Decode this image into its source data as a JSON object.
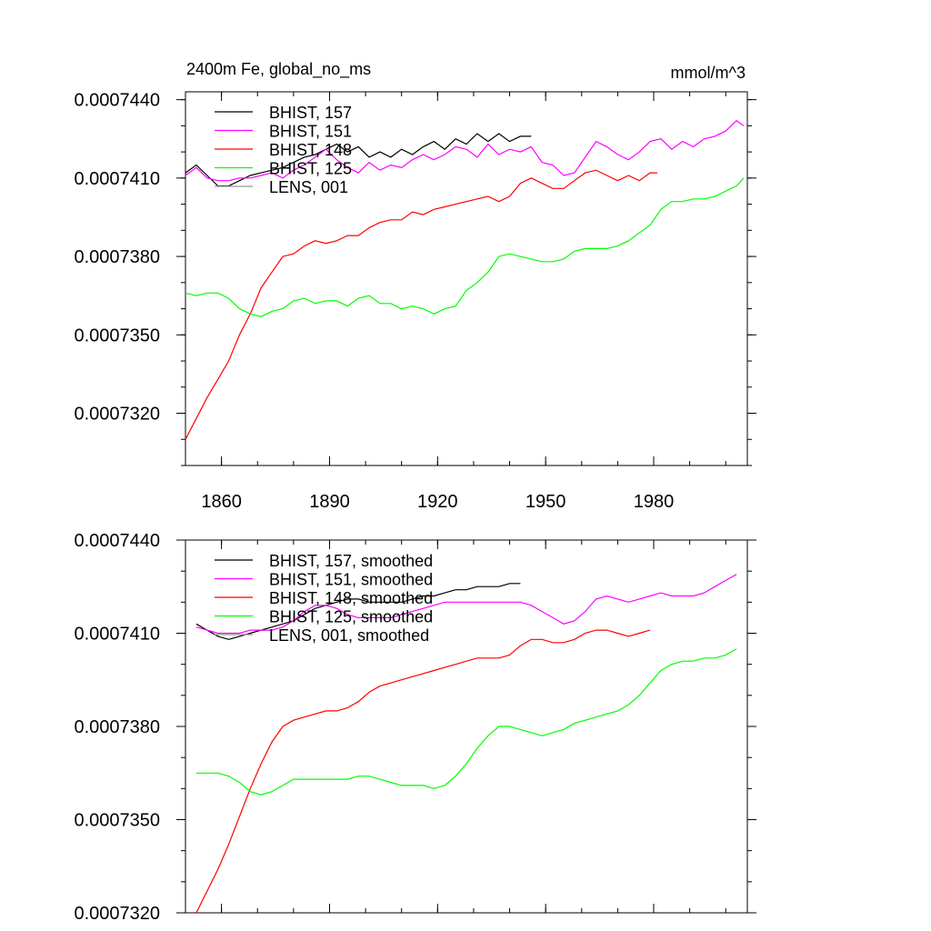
{
  "chart_data": [
    {
      "type": "line",
      "title": "2400m Fe, global_no_ms",
      "units": "mmol/m^3",
      "xlim": [
        1850,
        2006
      ],
      "ylim": [
        0.00073,
        0.0007443
      ],
      "x_ticks": [
        "1860",
        "1890",
        "1920",
        "1950",
        "1980"
      ],
      "y_ticks": [
        "0.0007320",
        "0.0007350",
        "0.0007380",
        "0.0007410",
        "0.0007440"
      ],
      "series": [
        {
          "name": "BHIST, 157",
          "color": "#000000",
          "x": [
            1850,
            1853,
            1856,
            1859,
            1862,
            1865,
            1868,
            1871,
            1874,
            1877,
            1880,
            1883,
            1886,
            1889,
            1892,
            1895,
            1898,
            1901,
            1904,
            1907,
            1910,
            1913,
            1916,
            1919,
            1922,
            1925,
            1928,
            1931,
            1934,
            1937,
            1940,
            1943,
            1946
          ],
          "y": [
            0.0007412,
            0.0007415,
            0.0007411,
            0.0007407,
            0.0007407,
            0.0007409,
            0.0007411,
            0.0007412,
            0.0007413,
            0.0007414,
            0.0007416,
            0.0007418,
            0.0007419,
            0.0007421,
            0.0007423,
            0.000742,
            0.0007422,
            0.0007418,
            0.000742,
            0.0007418,
            0.0007421,
            0.0007419,
            0.0007422,
            0.0007424,
            0.0007421,
            0.0007425,
            0.0007423,
            0.0007427,
            0.0007424,
            0.0007427,
            0.0007424,
            0.0007426,
            0.0007426
          ]
        },
        {
          "name": "BHIST, 151",
          "color": "#ff00ff",
          "x": [
            1850,
            1853,
            1856,
            1859,
            1862,
            1865,
            1868,
            1871,
            1874,
            1877,
            1880,
            1883,
            1886,
            1889,
            1892,
            1895,
            1898,
            1901,
            1904,
            1907,
            1910,
            1913,
            1916,
            1919,
            1922,
            1925,
            1928,
            1931,
            1934,
            1937,
            1940,
            1943,
            1946,
            1949,
            1952,
            1955,
            1958,
            1961,
            1964,
            1967,
            1970,
            1973,
            1976,
            1979,
            1982,
            1985,
            1988,
            1991,
            1994,
            1997,
            2000,
            2003,
            2005
          ],
          "y": [
            0.0007411,
            0.0007414,
            0.000741,
            0.0007409,
            0.0007409,
            0.000741,
            0.000741,
            0.0007411,
            0.0007412,
            0.000741,
            0.0007413,
            0.0007415,
            0.0007418,
            0.0007421,
            0.0007417,
            0.0007414,
            0.0007412,
            0.0007416,
            0.0007413,
            0.0007415,
            0.0007414,
            0.0007417,
            0.0007419,
            0.0007417,
            0.0007419,
            0.0007422,
            0.0007421,
            0.0007418,
            0.0007423,
            0.0007419,
            0.0007421,
            0.000742,
            0.0007422,
            0.0007416,
            0.0007415,
            0.0007411,
            0.0007412,
            0.0007418,
            0.0007424,
            0.0007422,
            0.0007419,
            0.0007417,
            0.000742,
            0.0007424,
            0.0007425,
            0.0007421,
            0.0007424,
            0.0007422,
            0.0007425,
            0.0007426,
            0.0007428,
            0.0007432,
            0.000743
          ]
        },
        {
          "name": "BHIST, 148",
          "color": "#ff0000",
          "x": [
            1850,
            1853,
            1856,
            1859,
            1862,
            1865,
            1868,
            1871,
            1874,
            1877,
            1880,
            1883,
            1886,
            1889,
            1892,
            1895,
            1898,
            1901,
            1904,
            1907,
            1910,
            1913,
            1916,
            1919,
            1922,
            1925,
            1928,
            1931,
            1934,
            1937,
            1940,
            1943,
            1946,
            1949,
            1952,
            1955,
            1958,
            1961,
            1964,
            1967,
            1970,
            1973,
            1976,
            1979,
            1981
          ],
          "y": [
            0.000731,
            0.0007318,
            0.0007326,
            0.0007333,
            0.000734,
            0.000735,
            0.0007358,
            0.0007368,
            0.0007374,
            0.000738,
            0.0007381,
            0.0007384,
            0.0007386,
            0.0007385,
            0.0007386,
            0.0007388,
            0.0007388,
            0.0007391,
            0.0007393,
            0.0007394,
            0.0007394,
            0.0007397,
            0.0007396,
            0.0007398,
            0.0007399,
            0.00074,
            0.0007401,
            0.0007402,
            0.0007403,
            0.0007401,
            0.0007403,
            0.0007408,
            0.000741,
            0.0007408,
            0.0007406,
            0.0007406,
            0.0007409,
            0.0007412,
            0.0007413,
            0.0007411,
            0.0007409,
            0.0007411,
            0.0007409,
            0.0007412,
            0.0007412
          ]
        },
        {
          "name": "BHIST, 125",
          "color": "#00ff00",
          "x": [
            1850,
            1853,
            1856,
            1859,
            1862,
            1865,
            1868,
            1871,
            1874,
            1877,
            1880,
            1883,
            1886,
            1889,
            1892,
            1895,
            1898,
            1901,
            1904,
            1907,
            1910,
            1913,
            1916,
            1919,
            1922,
            1925,
            1928,
            1931,
            1934,
            1937,
            1940,
            1943,
            1946,
            1949,
            1952,
            1955,
            1958,
            1961,
            1964,
            1967,
            1970,
            1973,
            1976,
            1979,
            1982,
            1985,
            1988,
            1991,
            1994,
            1997,
            2000,
            2003,
            2005
          ],
          "y": [
            0.0007366,
            0.0007365,
            0.0007366,
            0.0007366,
            0.0007364,
            0.000736,
            0.0007358,
            0.0007357,
            0.0007359,
            0.000736,
            0.0007363,
            0.0007364,
            0.0007362,
            0.0007363,
            0.0007363,
            0.0007361,
            0.0007364,
            0.0007365,
            0.0007362,
            0.0007362,
            0.000736,
            0.0007361,
            0.000736,
            0.0007358,
            0.000736,
            0.0007361,
            0.0007367,
            0.000737,
            0.0007374,
            0.000738,
            0.0007381,
            0.000738,
            0.0007379,
            0.0007378,
            0.0007378,
            0.0007379,
            0.0007382,
            0.0007383,
            0.0007383,
            0.0007383,
            0.0007384,
            0.0007386,
            0.0007389,
            0.0007392,
            0.0007398,
            0.0007401,
            0.0007401,
            0.0007402,
            0.0007402,
            0.0007403,
            0.0007405,
            0.0007407,
            0.000741
          ]
        },
        {
          "name": "LENS, 001",
          "color": "#999999",
          "x": [],
          "y": []
        }
      ]
    },
    {
      "type": "line",
      "xlim": [
        1850,
        2006
      ],
      "ylim": [
        0.000732,
        0.000744
      ],
      "x_ticks": [
        "1860",
        "1890",
        "1920",
        "1950",
        "1980"
      ],
      "y_ticks": [
        "0.0007320",
        "0.0007350",
        "0.0007380",
        "0.0007410",
        "0.0007440"
      ],
      "series": [
        {
          "name": "BHIST, 157, smoothed",
          "color": "#000000",
          "x": [
            1853,
            1856,
            1859,
            1862,
            1865,
            1868,
            1871,
            1874,
            1877,
            1880,
            1883,
            1886,
            1889,
            1892,
            1895,
            1898,
            1901,
            1904,
            1907,
            1910,
            1913,
            1916,
            1919,
            1922,
            1925,
            1928,
            1931,
            1934,
            1937,
            1940,
            1943
          ],
          "y": [
            0.0007413,
            0.0007411,
            0.0007409,
            0.0007408,
            0.0007409,
            0.000741,
            0.0007411,
            0.0007412,
            0.0007413,
            0.0007414,
            0.0007416,
            0.0007418,
            0.0007419,
            0.000742,
            0.0007421,
            0.0007421,
            0.000742,
            0.000742,
            0.000742,
            0.000742,
            0.0007421,
            0.0007422,
            0.0007422,
            0.0007423,
            0.0007424,
            0.0007424,
            0.0007425,
            0.0007425,
            0.0007425,
            0.0007426,
            0.0007426
          ]
        },
        {
          "name": "BHIST, 151, smoothed",
          "color": "#ff00ff",
          "x": [
            1853,
            1856,
            1859,
            1862,
            1865,
            1868,
            1871,
            1874,
            1877,
            1880,
            1883,
            1886,
            1889,
            1892,
            1895,
            1898,
            1901,
            1904,
            1907,
            1910,
            1913,
            1916,
            1919,
            1922,
            1925,
            1928,
            1931,
            1934,
            1937,
            1940,
            1943,
            1946,
            1949,
            1952,
            1955,
            1958,
            1961,
            1964,
            1967,
            1970,
            1973,
            1976,
            1979,
            1982,
            1985,
            1988,
            1991,
            1994,
            1997,
            2000,
            2003
          ],
          "y": [
            0.0007412,
            0.0007411,
            0.000741,
            0.000741,
            0.000741,
            0.0007411,
            0.0007411,
            0.0007411,
            0.0007412,
            0.0007414,
            0.0007417,
            0.0007419,
            0.0007419,
            0.0007418,
            0.0007416,
            0.0007415,
            0.0007415,
            0.0007415,
            0.0007415,
            0.0007416,
            0.0007417,
            0.0007418,
            0.0007419,
            0.000742,
            0.000742,
            0.000742,
            0.000742,
            0.000742,
            0.000742,
            0.000742,
            0.000742,
            0.0007419,
            0.0007417,
            0.0007415,
            0.0007413,
            0.0007414,
            0.0007417,
            0.0007421,
            0.0007422,
            0.0007421,
            0.000742,
            0.0007421,
            0.0007422,
            0.0007423,
            0.0007422,
            0.0007422,
            0.0007422,
            0.0007423,
            0.0007425,
            0.0007427,
            0.0007429
          ]
        },
        {
          "name": "BHIST, 148, smoothed",
          "color": "#ff0000",
          "x": [
            1853,
            1856,
            1859,
            1862,
            1865,
            1868,
            1871,
            1874,
            1877,
            1880,
            1883,
            1886,
            1889,
            1892,
            1895,
            1898,
            1901,
            1904,
            1907,
            1910,
            1913,
            1916,
            1919,
            1922,
            1925,
            1928,
            1931,
            1934,
            1937,
            1940,
            1943,
            1946,
            1949,
            1952,
            1955,
            1958,
            1961,
            1964,
            1967,
            1970,
            1973,
            1976,
            1979
          ],
          "y": [
            0.000732,
            0.0007327,
            0.0007334,
            0.0007342,
            0.0007351,
            0.000736,
            0.0007368,
            0.0007375,
            0.000738,
            0.0007382,
            0.0007383,
            0.0007384,
            0.0007385,
            0.0007385,
            0.0007386,
            0.0007388,
            0.0007391,
            0.0007393,
            0.0007394,
            0.0007395,
            0.0007396,
            0.0007397,
            0.0007398,
            0.0007399,
            0.00074,
            0.0007401,
            0.0007402,
            0.0007402,
            0.0007402,
            0.0007403,
            0.0007406,
            0.0007408,
            0.0007408,
            0.0007407,
            0.0007407,
            0.0007408,
            0.000741,
            0.0007411,
            0.0007411,
            0.000741,
            0.0007409,
            0.000741,
            0.0007411
          ]
        },
        {
          "name": "BHIST, 125, smoothed",
          "color": "#00ff00",
          "x": [
            1853,
            1856,
            1859,
            1862,
            1865,
            1868,
            1871,
            1874,
            1877,
            1880,
            1883,
            1886,
            1889,
            1892,
            1895,
            1898,
            1901,
            1904,
            1907,
            1910,
            1913,
            1916,
            1919,
            1922,
            1925,
            1928,
            1931,
            1934,
            1937,
            1940,
            1943,
            1946,
            1949,
            1952,
            1955,
            1958,
            1961,
            1964,
            1967,
            1970,
            1973,
            1976,
            1979,
            1982,
            1985,
            1988,
            1991,
            1994,
            1997,
            2000,
            2003
          ],
          "y": [
            0.0007365,
            0.0007365,
            0.0007365,
            0.0007364,
            0.0007362,
            0.0007359,
            0.0007358,
            0.0007359,
            0.0007361,
            0.0007363,
            0.0007363,
            0.0007363,
            0.0007363,
            0.0007363,
            0.0007363,
            0.0007364,
            0.0007364,
            0.0007363,
            0.0007362,
            0.0007361,
            0.0007361,
            0.0007361,
            0.000736,
            0.0007361,
            0.0007364,
            0.0007368,
            0.0007373,
            0.0007377,
            0.000738,
            0.000738,
            0.0007379,
            0.0007378,
            0.0007377,
            0.0007378,
            0.0007379,
            0.0007381,
            0.0007382,
            0.0007383,
            0.0007384,
            0.0007385,
            0.0007387,
            0.000739,
            0.0007394,
            0.0007398,
            0.00074,
            0.0007401,
            0.0007401,
            0.0007402,
            0.0007402,
            0.0007403,
            0.0007405
          ]
        },
        {
          "name": "LENS, 001, smoothed",
          "color": "#999999",
          "x": [],
          "y": []
        }
      ]
    }
  ]
}
